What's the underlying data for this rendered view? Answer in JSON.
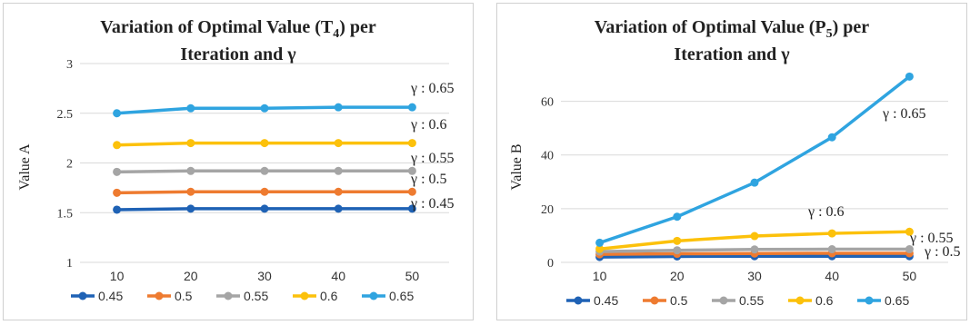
{
  "chart_data": [
    {
      "type": "line",
      "title_line1": "Variation of Optimal Value (T",
      "title_sub": "4",
      "title_line1_end": ") per",
      "title_line2": "Iteration and γ",
      "ylabel": "Value A",
      "xlabel": "",
      "categories": [
        "10",
        "20",
        "30",
        "40",
        "50"
      ],
      "ylim": [
        1,
        3
      ],
      "yticks": [
        "1",
        "1.5",
        "2",
        "2.5",
        "3"
      ],
      "grid": true,
      "legend": "bottom",
      "series": [
        {
          "name": "0.45",
          "color": "#1f62b5",
          "values": [
            1.53,
            1.54,
            1.54,
            1.54,
            1.54
          ]
        },
        {
          "name": "0.5",
          "color": "#ee7b30",
          "values": [
            1.7,
            1.71,
            1.71,
            1.71,
            1.71
          ]
        },
        {
          "name": "0.55",
          "color": "#a5a5a5",
          "values": [
            1.91,
            1.92,
            1.92,
            1.92,
            1.92
          ]
        },
        {
          "name": "0.6",
          "color": "#fcc10b",
          "values": [
            2.18,
            2.2,
            2.2,
            2.2,
            2.2
          ]
        },
        {
          "name": "0.65",
          "color": "#2fa4e0",
          "values": [
            2.5,
            2.55,
            2.55,
            2.56,
            2.56
          ]
        }
      ],
      "annotations": [
        "γ : 0.65",
        "γ : 0.6",
        "γ : 0.55",
        "γ : 0.5",
        "γ : 0.45"
      ]
    },
    {
      "type": "line",
      "title_line1": "Variation of Optimal Value (P",
      "title_sub": "5",
      "title_line1_end": ") per",
      "title_line2": "Iteration and γ",
      "ylabel": "Value B",
      "xlabel": "",
      "categories": [
        "10",
        "20",
        "30",
        "40",
        "50"
      ],
      "ylim": [
        0,
        70
      ],
      "yticks": [
        "0",
        "20",
        "40",
        "60"
      ],
      "grid": true,
      "legend": "bottom",
      "series": [
        {
          "name": "0.45",
          "color": "#1f62b5",
          "values": [
            2,
            2.2,
            2.3,
            2.3,
            2.3
          ]
        },
        {
          "name": "0.5",
          "color": "#ee7b30",
          "values": [
            3,
            3.2,
            3.3,
            3.4,
            3.4
          ]
        },
        {
          "name": "0.55",
          "color": "#a5a5a5",
          "values": [
            4,
            4.5,
            4.8,
            4.9,
            4.9
          ]
        },
        {
          "name": "0.6",
          "color": "#fcc10b",
          "values": [
            5,
            8,
            9.8,
            10.8,
            11.4
          ]
        },
        {
          "name": "0.65",
          "color": "#2fa4e0",
          "values": [
            7.3,
            17,
            29.7,
            46.6,
            69.2
          ]
        }
      ],
      "annotations": [
        "γ : 0.65",
        "γ : 0.6",
        "γ : 0.55",
        "γ : 0.5"
      ]
    }
  ]
}
